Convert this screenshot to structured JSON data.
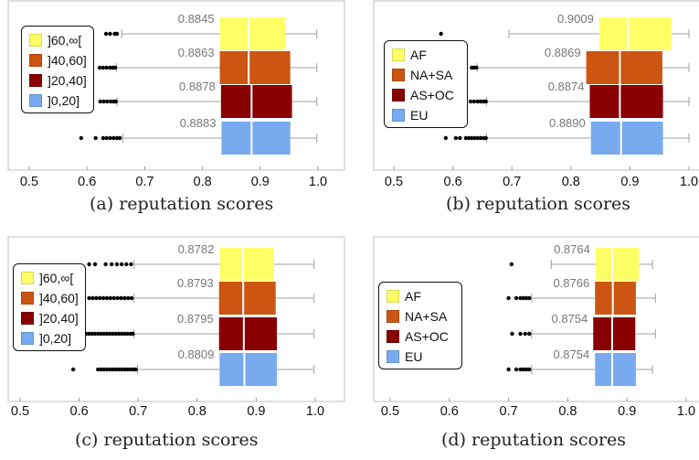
{
  "chart_data": [
    {
      "type": "boxplot",
      "caption": "(a)  reputation scores",
      "xlim": [
        0.5,
        1.0
      ],
      "xticks": [
        "0.5",
        "0.6",
        "0.7",
        "0.8",
        "0.9",
        "1.0"
      ],
      "legend": {
        "position": "top-left",
        "entries": [
          "]60,∞[",
          "]40,60]",
          "]20,40]",
          "]0,20]"
        ]
      },
      "series": [
        {
          "name": "]60,∞[",
          "color": "#ffff66",
          "median_label": "0.8845",
          "whisker_low": 0.66,
          "q1": 0.83,
          "median": 0.88,
          "q3": 0.943,
          "whisker_high": 0.998,
          "outliers": [
            0.633,
            0.64,
            0.648,
            0.652
          ]
        },
        {
          "name": "]40,60]",
          "color": "#cc5511",
          "median_label": "0.8863",
          "whisker_low": 0.651,
          "q1": 0.83,
          "median": 0.88,
          "q3": 0.952,
          "whisker_high": 0.998,
          "outliers": [
            0.622,
            0.628,
            0.634,
            0.64,
            0.645,
            0.649
          ]
        },
        {
          "name": "]20,40]",
          "color": "#880000",
          "median_label": "0.8878",
          "whisker_low": 0.652,
          "q1": 0.832,
          "median": 0.885,
          "q3": 0.955,
          "whisker_high": 0.998,
          "outliers": [
            0.623,
            0.629,
            0.635,
            0.641,
            0.646,
            0.65
          ]
        },
        {
          "name": "]0,20]",
          "color": "#77aaee",
          "median_label": "0.8883",
          "whisker_low": 0.662,
          "q1": 0.833,
          "median": 0.885,
          "q3": 0.952,
          "whisker_high": 0.998,
          "outliers": [
            0.59,
            0.615,
            0.628,
            0.634,
            0.64,
            0.646,
            0.652,
            0.657
          ]
        }
      ]
    },
    {
      "type": "boxplot",
      "caption": "(b)  reputation scores",
      "xlim": [
        0.5,
        1.0
      ],
      "xticks": [
        "0.5",
        "0.6",
        "0.7",
        "0.8",
        "0.9",
        "1.0"
      ],
      "legend": {
        "position": "top-left",
        "entries": [
          "AF",
          "NA+SA",
          "AS+OC",
          "EU"
        ]
      },
      "series": [
        {
          "name": "AF",
          "color": "#ffff66",
          "median_label": "0.9009",
          "whisker_low": 0.695,
          "q1": 0.848,
          "median": 0.897,
          "q3": 0.97,
          "whisker_high": 1.0,
          "outliers": [
            0.58
          ]
        },
        {
          "name": "NA+SA",
          "color": "#cc5511",
          "median_label": "0.8869",
          "whisker_low": 0.641,
          "q1": 0.826,
          "median": 0.883,
          "q3": 0.955,
          "whisker_high": 1.0,
          "outliers": [
            0.632,
            0.636,
            0.64
          ]
        },
        {
          "name": "AS+OC",
          "color": "#880000",
          "median_label": "0.8874",
          "whisker_low": 0.657,
          "q1": 0.832,
          "median": 0.883,
          "q3": 0.956,
          "whisker_high": 1.0,
          "outliers": [
            0.622,
            0.63,
            0.636,
            0.642,
            0.647,
            0.652,
            0.656
          ]
        },
        {
          "name": "EU",
          "color": "#77aaee",
          "median_label": "0.8890",
          "whisker_low": 0.657,
          "q1": 0.834,
          "median": 0.885,
          "q3": 0.956,
          "whisker_high": 1.0,
          "outliers": [
            0.588,
            0.605,
            0.612,
            0.622,
            0.627,
            0.632,
            0.637,
            0.642,
            0.647,
            0.652,
            0.656
          ]
        }
      ]
    },
    {
      "type": "boxplot",
      "caption": "(c)  reputation scores",
      "xlim": [
        0.5,
        1.0
      ],
      "xticks": [
        "0.5",
        "0.6",
        "0.7",
        "0.8",
        "0.9",
        "1.0"
      ],
      "legend": {
        "position": "top-left",
        "entries": [
          "]60,∞[",
          "]40,60]",
          "]20,40]",
          "]0,20]"
        ]
      },
      "series": [
        {
          "name": "]60,∞[",
          "color": "#ffff66",
          "median_label": "0.8782",
          "whisker_low": 0.693,
          "q1": 0.838,
          "median": 0.877,
          "q3": 0.93,
          "whisker_high": 0.998,
          "outliers": [
            0.617,
            0.627,
            0.645,
            0.655,
            0.664,
            0.672,
            0.68,
            0.688
          ]
        },
        {
          "name": "]40,60]",
          "color": "#cc5511",
          "median_label": "0.8793",
          "whisker_low": 0.693,
          "q1": 0.837,
          "median": 0.878,
          "q3": 0.933,
          "whisker_high": 0.998,
          "outliers": [
            0.617,
            0.623,
            0.629,
            0.635,
            0.641,
            0.647,
            0.653,
            0.659,
            0.665,
            0.671,
            0.677,
            0.683,
            0.689
          ]
        },
        {
          "name": "]20,40]",
          "color": "#880000",
          "median_label": "0.8795",
          "whisker_low": 0.693,
          "q1": 0.837,
          "median": 0.879,
          "q3": 0.935,
          "whisker_high": 0.998,
          "outliers": [
            0.612,
            0.617,
            0.622,
            0.627,
            0.632,
            0.637,
            0.642,
            0.647,
            0.652,
            0.657,
            0.662,
            0.667,
            0.672,
            0.677,
            0.682,
            0.687,
            0.691
          ]
        },
        {
          "name": "]0,20]",
          "color": "#77aaee",
          "median_label": "0.8809",
          "whisker_low": 0.699,
          "q1": 0.838,
          "median": 0.88,
          "q3": 0.935,
          "whisker_high": 0.998,
          "outliers": [
            0.59,
            0.632,
            0.637,
            0.642,
            0.647,
            0.652,
            0.657,
            0.662,
            0.667,
            0.672,
            0.677,
            0.682,
            0.687,
            0.692,
            0.696
          ]
        }
      ]
    },
    {
      "type": "boxplot",
      "caption": "(d)  reputation scores",
      "xlim": [
        0.5,
        1.0
      ],
      "xticks": [
        "0.5",
        "0.6",
        "0.7",
        "0.8",
        "0.9",
        "1.0"
      ],
      "legend": {
        "position": "center-left",
        "entries": [
          "AF",
          "NA+SA",
          "AS+OC",
          "EU"
        ]
      },
      "series": [
        {
          "name": "AF",
          "color": "#ffff66",
          "median_label": "0.8764",
          "whisker_low": 0.772,
          "q1": 0.847,
          "median": 0.875,
          "q3": 0.92,
          "whisker_high": 0.943,
          "outliers": [
            0.705
          ]
        },
        {
          "name": "NA+SA",
          "color": "#cc5511",
          "median_label": "0.8766",
          "whisker_low": 0.739,
          "q1": 0.846,
          "median": 0.876,
          "q3": 0.915,
          "whisker_high": 0.948,
          "outliers": [
            0.7,
            0.713,
            0.72,
            0.725,
            0.73,
            0.735
          ]
        },
        {
          "name": "AS+OC",
          "color": "#880000",
          "median_label": "0.8754",
          "whisker_low": 0.739,
          "q1": 0.843,
          "median": 0.875,
          "q3": 0.914,
          "whisker_high": 0.948,
          "outliers": [
            0.706,
            0.72,
            0.728,
            0.735
          ]
        },
        {
          "name": "EU",
          "color": "#77aaee",
          "median_label": "0.8754",
          "whisker_low": 0.739,
          "q1": 0.846,
          "median": 0.875,
          "q3": 0.915,
          "whisker_high": 0.943,
          "outliers": [
            0.7,
            0.713,
            0.72,
            0.725,
            0.73,
            0.735
          ]
        }
      ]
    }
  ]
}
